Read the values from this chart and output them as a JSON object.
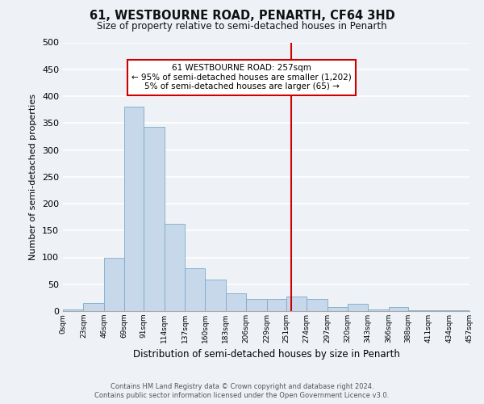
{
  "title": "61, WESTBOURNE ROAD, PENARTH, CF64 3HD",
  "subtitle": "Size of property relative to semi-detached houses in Penarth",
  "xlabel": "Distribution of semi-detached houses by size in Penarth",
  "ylabel": "Number of semi-detached properties",
  "bin_edges": [
    0,
    23,
    46,
    69,
    91,
    114,
    137,
    160,
    183,
    206,
    229,
    251,
    274,
    297,
    320,
    343,
    366,
    388,
    411,
    434,
    457
  ],
  "bar_heights": [
    3,
    15,
    100,
    380,
    343,
    163,
    80,
    58,
    33,
    23,
    22,
    27,
    22,
    8,
    13,
    3,
    8,
    2,
    1,
    1
  ],
  "bar_color": "#c8d8eb",
  "bar_edgecolor": "#7aaac8",
  "vline_x": 257,
  "vline_color": "#cc0000",
  "annotation_title": "61 WESTBOURNE ROAD: 257sqm",
  "annotation_line1": "← 95% of semi-detached houses are smaller (1,202)",
  "annotation_line2": "5% of semi-detached houses are larger (65) →",
  "annotation_box_color": "#ffffff",
  "annotation_box_edgecolor": "#cc0000",
  "ylim": [
    0,
    500
  ],
  "tick_labels": [
    "0sqm",
    "23sqm",
    "46sqm",
    "69sqm",
    "91sqm",
    "114sqm",
    "137sqm",
    "160sqm",
    "183sqm",
    "206sqm",
    "229sqm",
    "251sqm",
    "274sqm",
    "297sqm",
    "320sqm",
    "343sqm",
    "366sqm",
    "388sqm",
    "411sqm",
    "434sqm",
    "457sqm"
  ],
  "footnote1": "Contains HM Land Registry data © Crown copyright and database right 2024.",
  "footnote2": "Contains public sector information licensed under the Open Government Licence v3.0.",
  "background_color": "#eef2f7",
  "grid_color": "#ffffff"
}
